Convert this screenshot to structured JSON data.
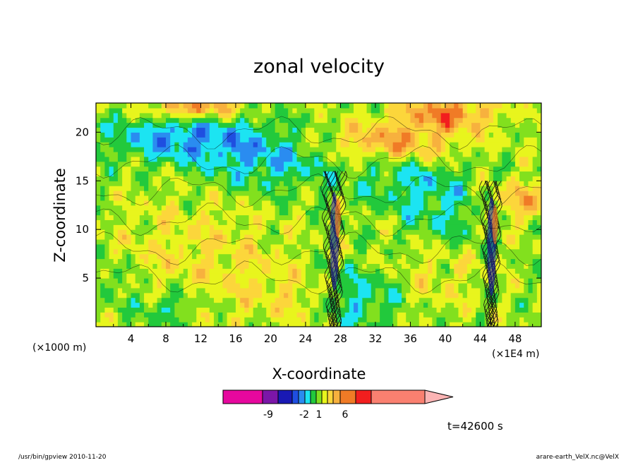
{
  "chart_data": {
    "type": "heatmap",
    "title": "zonal velocity",
    "xlabel": "X-coordinate",
    "ylabel": "Z-coordinate",
    "x_unit_left": "(×1000 m)",
    "x_unit_right": "(×1E4 m)",
    "xlim": [
      0,
      51
    ],
    "ylim": [
      0,
      23
    ],
    "x_ticks": [
      "4",
      "8",
      "12",
      "16",
      "20",
      "24",
      "28",
      "32",
      "36",
      "40",
      "44",
      "48"
    ],
    "y_ticks": [
      "5",
      "10",
      "15",
      "20"
    ],
    "colorbar": {
      "labels": [
        "-9",
        "-2",
        "1",
        "6"
      ],
      "colors": [
        "#e6089e",
        "#7b16a8",
        "#1919b4",
        "#1f4ee0",
        "#2a8cf0",
        "#1ce4f2",
        "#22c93c",
        "#82e01e",
        "#e8f51d",
        "#fcd63b",
        "#f7b13e",
        "#f07b26",
        "#f21e1e",
        "#fa8070",
        "#fbb4b4"
      ]
    },
    "time_label": "t=42600 s"
  },
  "footer": {
    "left": "/usr/bin/gpview   2010-11-20",
    "right": "arare-earth_VelX.nc@VelX"
  }
}
